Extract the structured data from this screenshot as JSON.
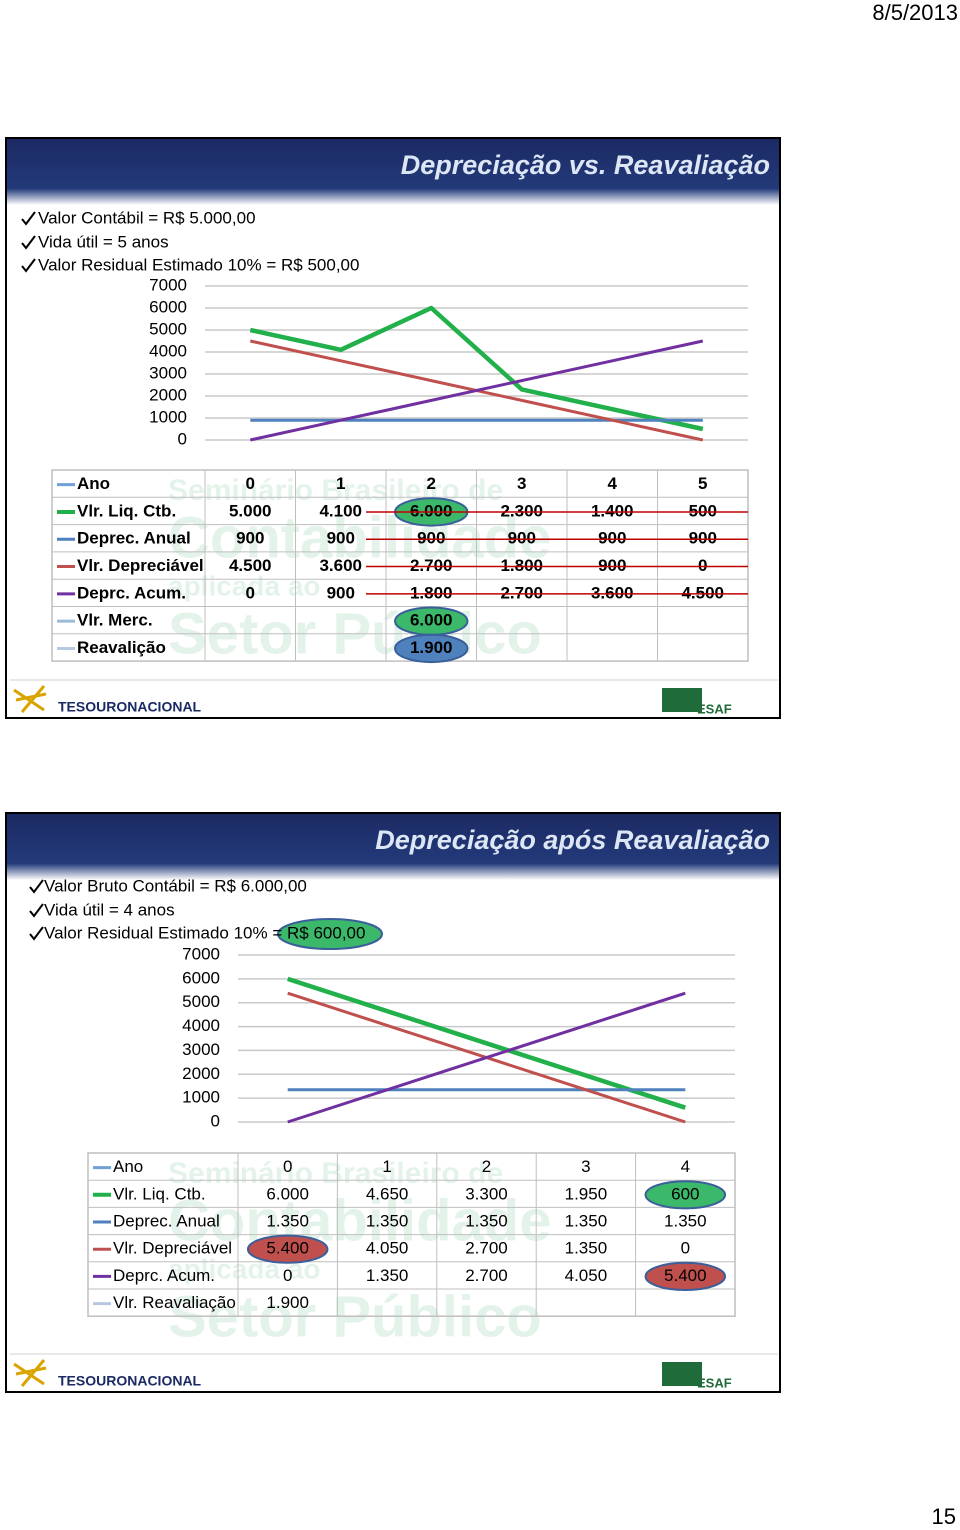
{
  "date": "8/5/2013",
  "page_number": "15",
  "chart_data": [
    {
      "type": "line",
      "title": "Depreciação vs. Reavaliação",
      "bullets": [
        "Valor Contábil = R$ 5.000,00",
        "Vida útil = 5 anos",
        "Valor Residual Estimado 10% = R$ 500,00"
      ],
      "x_label": "Ano",
      "categories": [
        "0",
        "1",
        "2",
        "3",
        "4",
        "5"
      ],
      "series": [
        {
          "name": "Vlr. Liq. Ctb.",
          "color": "#22b04b",
          "values": [
            5000,
            4100,
            6000,
            2300,
            1400,
            500
          ],
          "value_labels": [
            "5.000",
            "4.100",
            "6.000",
            "2.300",
            "1.400",
            "500"
          ],
          "highlight_colors": [
            null,
            null,
            "#3cb86a",
            null,
            null,
            null
          ]
        },
        {
          "name": "Deprec. Anual",
          "color": "#4f81bd",
          "values": [
            900,
            900,
            900,
            900,
            900,
            900
          ],
          "value_labels": [
            "900",
            "900",
            "900",
            "900",
            "900",
            "900"
          ],
          "highlight_colors": [
            null,
            null,
            null,
            null,
            null,
            null
          ]
        },
        {
          "name": "Vlr. Depreciável",
          "color": "#c0504d",
          "values": [
            4500,
            3600,
            2700,
            1800,
            900,
            0
          ],
          "value_labels": [
            "4.500",
            "3.600",
            "2.700",
            "1.800",
            "900",
            "0"
          ],
          "highlight_colors": [
            null,
            null,
            null,
            null,
            null,
            null
          ]
        },
        {
          "name": "Deprc. Acum.",
          "color": "#7030a0",
          "values": [
            0,
            900,
            1800,
            2700,
            3600,
            4500
          ],
          "value_labels": [
            "0",
            "900",
            "1.800",
            "2.700",
            "3.600",
            "4.500"
          ],
          "highlight_colors": [
            null,
            null,
            null,
            null,
            null,
            null
          ]
        },
        {
          "name": "Vlr. Merc.",
          "color": "#9bbbd9",
          "values": [
            null,
            null,
            6000,
            null,
            null,
            null
          ],
          "value_labels": [
            null,
            null,
            "6.000",
            null,
            null,
            null
          ],
          "highlight_colors": [
            null,
            null,
            "#3cb86a",
            null,
            null,
            null
          ]
        },
        {
          "name": "Reavalição",
          "color": "#b7c9e2",
          "values": [
            null,
            null,
            1900,
            null,
            null,
            null
          ],
          "value_labels": [
            null,
            null,
            "1.900",
            null,
            null,
            null
          ],
          "highlight_colors": [
            null,
            null,
            "#4f81bd",
            null,
            null,
            null
          ]
        }
      ],
      "ylim": [
        0,
        7000
      ],
      "yticks": [
        0,
        1000,
        2000,
        3000,
        4000,
        5000,
        6000,
        7000
      ],
      "grid": true,
      "footer_left": "TESOURONACIONAL",
      "footer_right": "ESAF",
      "watermark": [
        "Seminário Brasileiro de",
        "Contabilidade",
        "aplicada ao",
        "Setor Público"
      ]
    },
    {
      "type": "line",
      "title": "Depreciação após Reavaliação",
      "bullets": [
        "Valor Bruto Contábil = R$ 6.000,00",
        "Vida útil = 4 anos",
        "Valor Residual Estimado 10% = R$ 600,00"
      ],
      "x_label": "Ano",
      "categories": [
        "0",
        "1",
        "2",
        "3",
        "4"
      ],
      "series": [
        {
          "name": "Vlr. Liq. Ctb.",
          "color": "#22b04b",
          "values": [
            6000,
            4650,
            3300,
            1950,
            600
          ],
          "value_labels": [
            "6.000",
            "4.650",
            "3.300",
            "1.950",
            "600"
          ],
          "highlight_colors": [
            null,
            null,
            null,
            null,
            "#3cb86a"
          ]
        },
        {
          "name": "Deprec. Anual",
          "color": "#4f81bd",
          "values": [
            1350,
            1350,
            1350,
            1350,
            1350
          ],
          "value_labels": [
            "1.350",
            "1.350",
            "1.350",
            "1.350",
            "1.350"
          ],
          "highlight_colors": [
            null,
            null,
            null,
            null,
            null
          ]
        },
        {
          "name": "Vlr. Depreciável",
          "color": "#c0504d",
          "values": [
            5400,
            4050,
            2700,
            1350,
            0
          ],
          "value_labels": [
            "5.400",
            "4.050",
            "2.700",
            "1.350",
            "0"
          ],
          "highlight_colors": [
            "#c0504d",
            null,
            null,
            null,
            null
          ]
        },
        {
          "name": "Deprc. Acum.",
          "color": "#7030a0",
          "values": [
            0,
            1350,
            2700,
            4050,
            5400
          ],
          "value_labels": [
            "0",
            "1.350",
            "2.700",
            "4.050",
            "5.400"
          ],
          "highlight_colors": [
            null,
            null,
            null,
            null,
            "#c0504d"
          ]
        },
        {
          "name": "Vlr. Reavaliação",
          "color": "#b7c9e2",
          "values": [
            1900,
            null,
            null,
            null,
            null
          ],
          "value_labels": [
            "1.900",
            null,
            null,
            null,
            null
          ],
          "highlight_colors": [
            null,
            null,
            null,
            null,
            null
          ]
        }
      ],
      "ylim": [
        0,
        7000
      ],
      "yticks": [
        0,
        1000,
        2000,
        3000,
        4000,
        5000,
        6000,
        7000
      ],
      "grid": true,
      "footer_left": "TESOURONACIONAL",
      "footer_right": "ESAF",
      "watermark": [
        "Seminário Brasileiro de",
        "Contabilidade",
        "aplicada ao",
        "Setor Público"
      ]
    }
  ]
}
